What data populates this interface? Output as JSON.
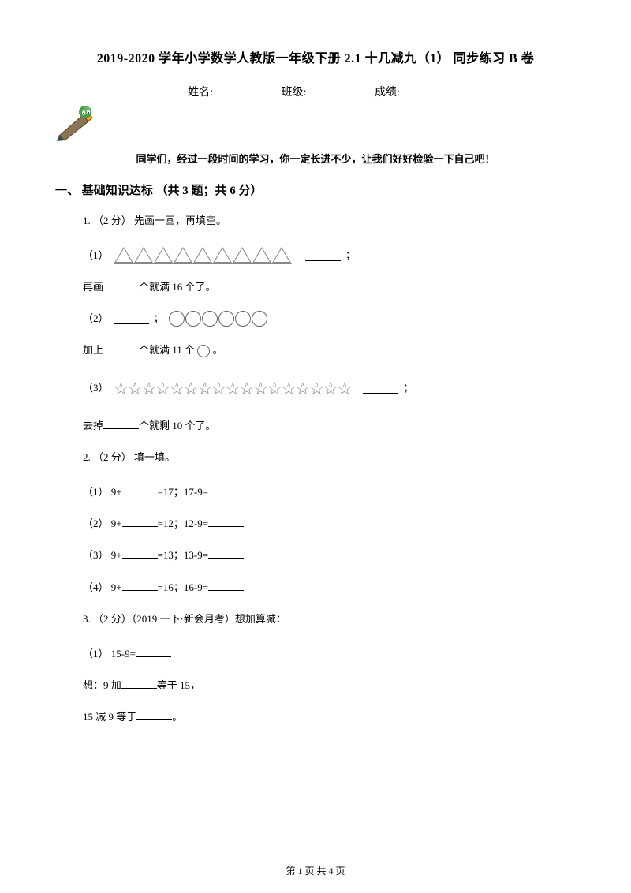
{
  "title": "2019-2020 学年小学数学人教版一年级下册 2.1 十几减九（1） 同步练习 B 卷",
  "info": {
    "name_label": "姓名:",
    "class_label": "班级:",
    "score_label": "成绩:"
  },
  "encourage": "同学们，经过一段时间的学习，你一定长进不少，让我们好好检验一下自己吧！",
  "section1": {
    "title": "一、 基础知识达标 （共 3 题；共 6 分）",
    "q1": {
      "header": "1. （2 分） 先画一画，再填空。",
      "sub1_prefix": "（1）",
      "sub1_count": 9,
      "sub1_text": "再画",
      "sub1_suffix": "个就满 16 个了。",
      "sub2_prefix": "（2）",
      "sub2_count": 6,
      "sub2_text": "加上",
      "sub2_suffix1": "个就满 11 个",
      "sub2_suffix2": " 。",
      "sub3_prefix": "（3）",
      "sub3_count": 17,
      "sub3_text": "去掉",
      "sub3_suffix": "个就剩 10 个了。"
    },
    "q2": {
      "header": "2. （2 分） 填一填。",
      "items": [
        "（1） 9+________=17；17-9=________",
        "（2） 9+________=12；12-9=________",
        "（3） 9+________=13；13-9=________",
        "（4） 9+________=16；16-9=________"
      ]
    },
    "q3": {
      "header": "3. （2 分）（2019 一下·新会月考）想加算减：",
      "sub1": "（1） 15-9=________",
      "think1": "想：9 加________等于 15，",
      "think2": "15 减 9 等于________。"
    }
  },
  "footer": "第 1 页 共 4 页"
}
